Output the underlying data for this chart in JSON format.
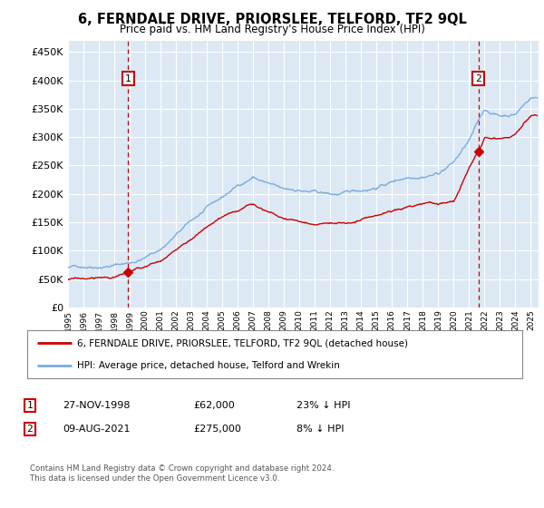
{
  "title": "6, FERNDALE DRIVE, PRIORSLEE, TELFORD, TF2 9QL",
  "subtitle": "Price paid vs. HM Land Registry's House Price Index (HPI)",
  "legend_line1": "6, FERNDALE DRIVE, PRIORSLEE, TELFORD, TF2 9QL (detached house)",
  "legend_line2": "HPI: Average price, detached house, Telford and Wrekin",
  "annotation1": {
    "num": "1",
    "date": "27-NOV-1998",
    "price": "£62,000",
    "pct": "23% ↓ HPI"
  },
  "annotation2": {
    "num": "2",
    "date": "09-AUG-2021",
    "price": "£275,000",
    "pct": "8% ↓ HPI"
  },
  "footer": "Contains HM Land Registry data © Crown copyright and database right 2024.\nThis data is licensed under the Open Government Licence v3.0.",
  "sale_color": "#cc0000",
  "hpi_color": "#7aacdc",
  "background_color": "#ffffff",
  "plot_bg_color": "#dce9f5",
  "ylim": [
    0,
    470000
  ],
  "yticks": [
    0,
    50000,
    100000,
    150000,
    200000,
    250000,
    300000,
    350000,
    400000,
    450000
  ],
  "sale1_x": 1998.9,
  "sale1_y": 62000,
  "sale2_x": 2021.6,
  "sale2_y": 275000,
  "xmin": 1995,
  "xmax": 2025.5
}
